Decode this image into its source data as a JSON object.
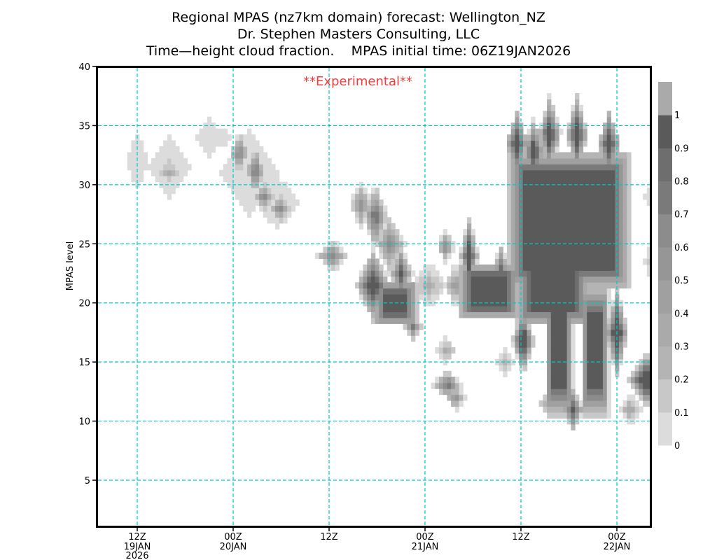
{
  "chart_data": {
    "type": "heatmap",
    "title": [
      "Regional MPAS (nz7km domain) forecast: Wellington_NZ",
      "Dr. Stephen Masters Consulting, LLC",
      "Time—height cloud fraction.    MPAS initial time: 06Z19JAN2026"
    ],
    "annotation": "**Experimental**",
    "annotation_color": "#f03c3c",
    "ylabel": "MPAS level",
    "xlabel": "",
    "xlim_hours_since_00Z19JAN2026": [
      7,
      77
    ],
    "ylim": [
      1,
      40
    ],
    "yticks": [
      5,
      10,
      15,
      20,
      25,
      30,
      35,
      40
    ],
    "xticks": [
      {
        "hour": 12,
        "label": "12Z",
        "date": "19JAN",
        "year": "2026"
      },
      {
        "hour": 24,
        "label": "00Z",
        "date": "20JAN",
        "year": ""
      },
      {
        "hour": 36,
        "label": "12Z",
        "date": "",
        "year": ""
      },
      {
        "hour": 48,
        "label": "00Z",
        "date": "21JAN",
        "year": ""
      },
      {
        "hour": 60,
        "label": "12Z",
        "date": "",
        "year": ""
      },
      {
        "hour": 72,
        "label": "00Z",
        "date": "22JAN",
        "year": ""
      }
    ],
    "grid": true,
    "grid_color": "#00c8c8",
    "colorbar": {
      "position": "right",
      "labels": [
        "0",
        "0.1",
        "0.2",
        "0.3",
        "0.4",
        "0.5",
        "0.6",
        "0.7",
        "0.8",
        "0.9",
        "1"
      ],
      "colors": [
        "#dcdcdc",
        "#c8c8c8",
        "#b4b4b4",
        "#aaaaaa",
        "#a0a0a0",
        "#969696",
        "#8c8c8c",
        "#7a7a7a",
        "#6e6e6e",
        "#5a5a5a",
        "#aaaaaa"
      ]
    },
    "cloud_features": [
      {
        "time_h": 12,
        "level": 32,
        "peak": 0.08,
        "rt": 1.5,
        "rl": 2.5
      },
      {
        "time_h": 16,
        "level": 31.5,
        "peak": 0.12,
        "rt": 3,
        "rl": 3
      },
      {
        "time_h": 16,
        "level": 31,
        "peak": 0.3,
        "rt": 1.5,
        "rl": 1.2
      },
      {
        "time_h": 21,
        "level": 34,
        "peak": 0.08,
        "rt": 2,
        "rl": 2
      },
      {
        "time_h": 22.8,
        "level": 34,
        "peak": 0.06,
        "rt": 1.2,
        "rl": 1.2
      },
      {
        "time_h": 26,
        "level": 31,
        "peak": 0.1,
        "rt": 4,
        "rl": 4
      },
      {
        "time_h": 29.5,
        "level": 28.5,
        "peak": 0.1,
        "rt": 3,
        "rl": 2.5
      },
      {
        "time_h": 24.8,
        "level": 32.7,
        "peak": 0.8,
        "rt": 1.3,
        "rl": 2
      },
      {
        "time_h": 26.8,
        "level": 31.2,
        "peak": 0.9,
        "rt": 1.3,
        "rl": 2.2
      },
      {
        "time_h": 27.8,
        "level": 29,
        "peak": 0.7,
        "rt": 1.4,
        "rl": 1.4
      },
      {
        "time_h": 29.8,
        "level": 28,
        "peak": 0.7,
        "rt": 1.4,
        "rl": 1.4
      },
      {
        "time_h": 36.4,
        "level": 24,
        "peak": 0.7,
        "rt": 2,
        "rl": 1.5
      },
      {
        "time_h": 40,
        "level": 28.3,
        "peak": 0.6,
        "rt": 1.6,
        "rl": 2
      },
      {
        "time_h": 41.8,
        "level": 27.3,
        "peak": 0.95,
        "rt": 1.6,
        "rl": 3
      },
      {
        "time_h": 43.6,
        "level": 25,
        "peak": 0.7,
        "rt": 2,
        "rl": 2.5
      },
      {
        "time_h": 41.5,
        "level": 21.5,
        "peak": 1.3,
        "rt": 2.3,
        "rl": 3.2
      },
      {
        "time_h": 44.3,
        "level": 20,
        "peak": 1.6,
        "rt": 3,
        "rl": 2,
        "shape": "box"
      },
      {
        "time_h": 45,
        "level": 22.5,
        "peak": 1.0,
        "rt": 1.6,
        "rl": 2.5
      },
      {
        "time_h": 46.5,
        "level": 18,
        "peak": 0.7,
        "rt": 1.3,
        "rl": 1.3
      },
      {
        "time_h": 48.5,
        "level": 21.5,
        "peak": 0.3,
        "rt": 2.5,
        "rl": 2
      },
      {
        "time_h": 50.6,
        "level": 24.8,
        "peak": 0.7,
        "rt": 1.2,
        "rl": 1.5
      },
      {
        "time_h": 50.6,
        "level": 16,
        "peak": 0.4,
        "rt": 1.2,
        "rl": 1.2
      },
      {
        "time_h": 50.8,
        "level": 13.1,
        "peak": 0.9,
        "rt": 2,
        "rl": 1.3
      },
      {
        "time_h": 51.8,
        "level": 12,
        "peak": 0.6,
        "rt": 1.3,
        "rl": 1.2
      },
      {
        "time_h": 51.8,
        "level": 21.5,
        "peak": 0.5,
        "rt": 1.5,
        "rl": 2
      },
      {
        "time_h": 56,
        "level": 21,
        "peak": 2.0,
        "rt": 4,
        "rl": 2.5,
        "shape": "box"
      },
      {
        "time_h": 53.5,
        "level": 24,
        "peak": 1.3,
        "rt": 1.2,
        "rl": 3.5
      },
      {
        "time_h": 57.5,
        "level": 23,
        "peak": 0.8,
        "rt": 1.2,
        "rl": 2
      },
      {
        "time_h": 58,
        "level": 15,
        "peak": 0.2,
        "rt": 1.5,
        "rl": 1.3
      },
      {
        "time_h": 66,
        "level": 27,
        "peak": 3.0,
        "rt": 8,
        "rl": 6,
        "shape": "box"
      },
      {
        "time_h": 59.5,
        "level": 33.5,
        "peak": 1.3,
        "rt": 1.5,
        "rl": 3
      },
      {
        "time_h": 61.6,
        "level": 32.8,
        "peak": 1.3,
        "rt": 1.5,
        "rl": 3
      },
      {
        "time_h": 63.6,
        "level": 34.3,
        "peak": 1.3,
        "rt": 1.5,
        "rl": 3.5
      },
      {
        "time_h": 67,
        "level": 34.3,
        "peak": 1.3,
        "rt": 1.5,
        "rl": 3.5
      },
      {
        "time_h": 71,
        "level": 33.5,
        "peak": 1.3,
        "rt": 1.5,
        "rl": 3
      },
      {
        "time_h": 64,
        "level": 21,
        "peak": 2.0,
        "rt": 5,
        "rl": 3,
        "shape": "box"
      },
      {
        "time_h": 64.8,
        "level": 16,
        "peak": 1.8,
        "rt": 1.8,
        "rl": 6,
        "shape": "box"
      },
      {
        "time_h": 69.3,
        "level": 16,
        "peak": 1.8,
        "rt": 1.8,
        "rl": 6,
        "shape": "box"
      },
      {
        "time_h": 72,
        "level": 17.5,
        "peak": 1.4,
        "rt": 1.5,
        "rl": 4
      },
      {
        "time_h": 60.3,
        "level": 16.8,
        "peak": 1.5,
        "rt": 1.5,
        "rl": 3
      },
      {
        "time_h": 66.5,
        "level": 11,
        "peak": 1.0,
        "rt": 1.5,
        "rl": 2
      },
      {
        "time_h": 63.5,
        "level": 11.5,
        "peak": 0.3,
        "rt": 1.5,
        "rl": 1.5
      },
      {
        "time_h": 75.8,
        "level": 13.5,
        "peak": 1.5,
        "rt": 2.5,
        "rl": 2.5
      },
      {
        "time_h": 73.7,
        "level": 11,
        "peak": 0.4,
        "rt": 1.5,
        "rl": 1.5
      },
      {
        "time_h": 76.8,
        "level": 29,
        "peak": 0.2,
        "rt": 1.5,
        "rl": 1.5
      },
      {
        "time_h": 76.8,
        "level": 23.5,
        "peak": 0.3,
        "rt": 1.5,
        "rl": 3
      }
    ]
  }
}
